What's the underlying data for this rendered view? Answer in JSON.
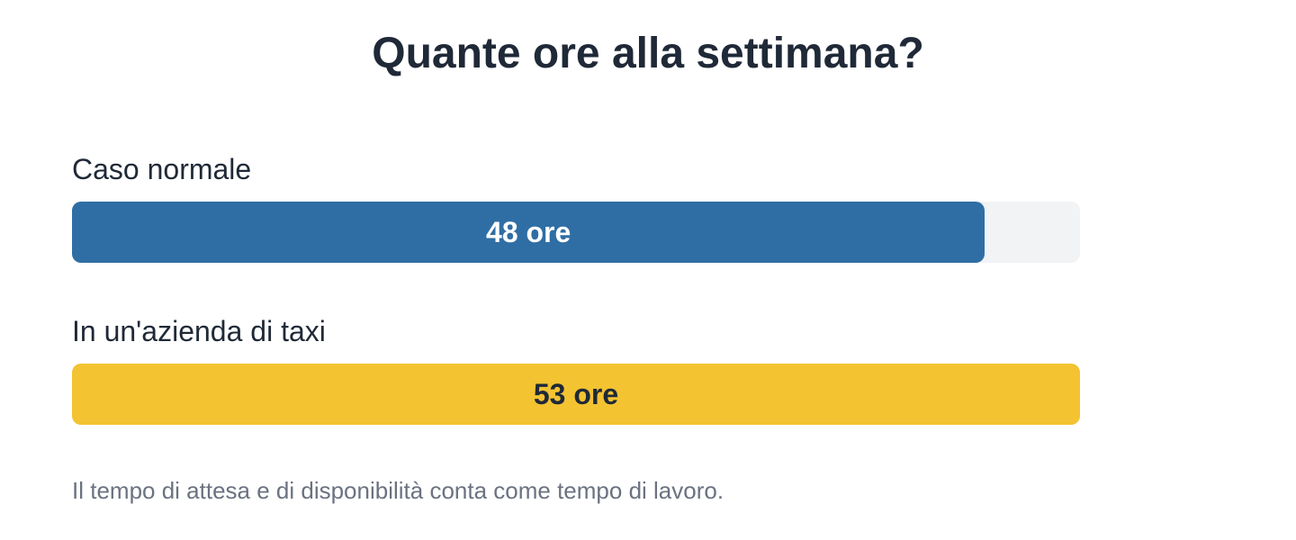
{
  "chart_data": {
    "type": "bar",
    "title": "Quante ore alla settimana?",
    "categories": [
      "Caso normale",
      "In un'azienda di taxi"
    ],
    "values": [
      48,
      53
    ],
    "value_labels": [
      "48 ore",
      "53 ore"
    ],
    "colors": [
      "#2f6ea4",
      "#f3c331"
    ],
    "note": "Il tempo di attesa e di disponibilità conta come tempo di lavoro."
  }
}
